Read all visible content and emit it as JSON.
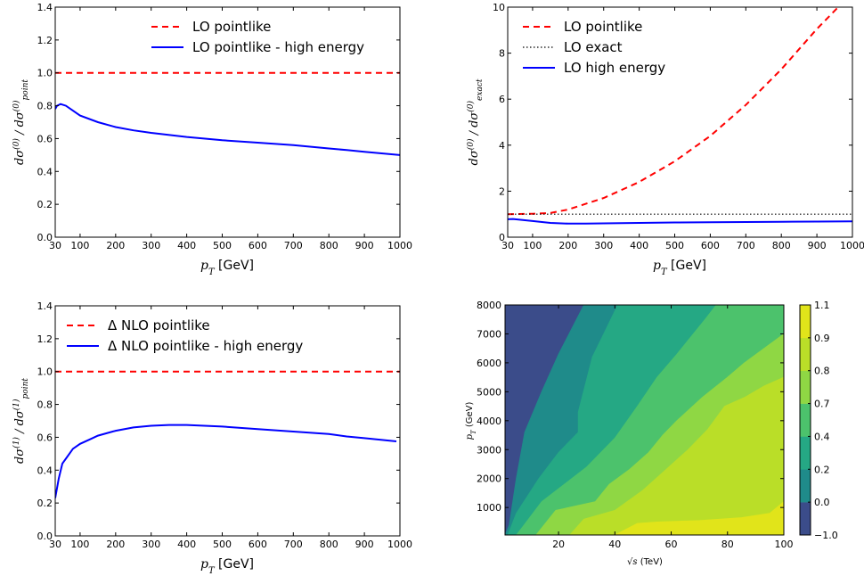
{
  "colors": {
    "red": "#ff0000",
    "blue": "#0000ff",
    "black": "#000000"
  },
  "chart_data": [
    {
      "type": "line",
      "ylabel": "dσ(0) / dσ(0)point",
      "xlabel": "pT [GeV]",
      "xlim": [
        30,
        1000
      ],
      "ylim": [
        0.0,
        1.4
      ],
      "xticks": [
        30,
        100,
        200,
        300,
        400,
        500,
        600,
        700,
        800,
        900,
        1000
      ],
      "yticks": [
        "0.0",
        "0.2",
        "0.4",
        "0.6",
        "0.8",
        "1.0",
        "1.2",
        "1.4"
      ],
      "legend_position": "top-right",
      "series": [
        {
          "name": "LO pointlike",
          "color": "#ff0000",
          "style": "dashed",
          "x": [
            30,
            1000
          ],
          "y": [
            1.0,
            1.0
          ]
        },
        {
          "name": "LO pointlike - high energy",
          "color": "#0000ff",
          "style": "solid",
          "x": [
            30,
            35,
            45,
            60,
            80,
            100,
            150,
            200,
            250,
            300,
            400,
            500,
            600,
            700,
            800,
            850,
            900,
            1000
          ],
          "y": [
            0.78,
            0.8,
            0.81,
            0.8,
            0.77,
            0.74,
            0.7,
            0.67,
            0.65,
            0.635,
            0.61,
            0.59,
            0.575,
            0.56,
            0.54,
            0.53,
            0.52,
            0.5
          ]
        }
      ]
    },
    {
      "type": "line",
      "ylabel": "dσ(0) / dσ(0)exact",
      "xlabel": "pT [GeV]",
      "xlim": [
        30,
        1000
      ],
      "ylim": [
        0,
        10
      ],
      "xticks": [
        30,
        100,
        200,
        300,
        400,
        500,
        600,
        700,
        800,
        900,
        1000
      ],
      "yticks": [
        "0",
        "2",
        "4",
        "6",
        "8",
        "10"
      ],
      "legend_position": "top-left",
      "series": [
        {
          "name": "LO pointlike",
          "color": "#ff0000",
          "style": "dashed",
          "x": [
            30,
            100,
            150,
            200,
            300,
            400,
            500,
            600,
            700,
            800,
            900,
            960
          ],
          "y": [
            1.0,
            1.02,
            1.05,
            1.2,
            1.7,
            2.4,
            3.3,
            4.4,
            5.75,
            7.3,
            9.05,
            10.0
          ]
        },
        {
          "name": "LO exact",
          "color": "#000000",
          "style": "dotted",
          "x": [
            30,
            1000
          ],
          "y": [
            1.0,
            1.0
          ]
        },
        {
          "name": "LO high energy",
          "color": "#0000ff",
          "style": "solid",
          "x": [
            30,
            45,
            100,
            150,
            200,
            250,
            300,
            400,
            500,
            600,
            700,
            800,
            900,
            1000
          ],
          "y": [
            0.78,
            0.79,
            0.7,
            0.62,
            0.59,
            0.59,
            0.6,
            0.62,
            0.64,
            0.65,
            0.66,
            0.67,
            0.68,
            0.69
          ]
        }
      ]
    },
    {
      "type": "line",
      "ylabel": "dσ(1) / dσ(1)point",
      "xlabel": "pT [GeV]",
      "xlim": [
        30,
        1000
      ],
      "ylim": [
        0.0,
        1.4
      ],
      "xticks": [
        30,
        100,
        200,
        300,
        400,
        500,
        600,
        700,
        800,
        900,
        1000
      ],
      "yticks": [
        "0.0",
        "0.2",
        "0.4",
        "0.6",
        "0.8",
        "1.0",
        "1.2",
        "1.4"
      ],
      "legend_position": "top-left",
      "series": [
        {
          "name": "Δ NLO pointlike",
          "color": "#ff0000",
          "style": "dashed",
          "x": [
            30,
            1000
          ],
          "y": [
            1.0,
            1.0
          ]
        },
        {
          "name": "Δ NLO pointlike - high energy",
          "color": "#0000ff",
          "style": "solid",
          "x": [
            30,
            40,
            50,
            60,
            80,
            100,
            130,
            150,
            200,
            250,
            300,
            350,
            400,
            500,
            600,
            700,
            800,
            850,
            900,
            990
          ],
          "y": [
            0.23,
            0.35,
            0.44,
            0.47,
            0.53,
            0.56,
            0.59,
            0.61,
            0.64,
            0.66,
            0.67,
            0.675,
            0.675,
            0.665,
            0.65,
            0.635,
            0.62,
            0.605,
            0.595,
            0.575
          ]
        }
      ]
    },
    {
      "type": "heatmap",
      "xlabel": "√s (TeV)",
      "ylabel": "pT (GeV)",
      "xlim": [
        1,
        100
      ],
      "ylim": [
        50,
        8000
      ],
      "xticks": [
        "20",
        "40",
        "60",
        "80",
        "100"
      ],
      "yticks": [
        "1000",
        "2000",
        "3000",
        "4000",
        "5000",
        "6000",
        "7000",
        "8000"
      ],
      "colorbar_levels": [
        -1.0,
        0.0,
        0.2,
        0.4,
        0.7,
        0.8,
        0.9,
        1.1
      ],
      "colorbar_ticks": [
        "−1.0",
        "0.0",
        "0.2",
        "0.4",
        "0.7",
        "0.8",
        "0.9",
        "1.1"
      ],
      "colorbar_colors": [
        "#3b4c8a",
        "#1f8b8a",
        "#25a884",
        "#4cc26c",
        "#8fd744",
        "#bade28",
        "#e1e41a"
      ],
      "contour_regions": [
        {
          "level_index": 0,
          "color": "#3b4c8a",
          "polygon": [
            [
              1,
              8000
            ],
            [
              1,
              50
            ],
            [
              2.5,
              400
            ],
            [
              5,
              2000
            ],
            [
              8,
              3600
            ],
            [
              14,
              5000
            ],
            [
              20,
              6300
            ],
            [
              29,
              8000
            ]
          ]
        },
        {
          "level_index": 1,
          "color": "#1f8b8a",
          "polygon": [
            [
              1,
              50
            ],
            [
              2.5,
              400
            ],
            [
              5,
              2000
            ],
            [
              8,
              3600
            ],
            [
              14,
              5000
            ],
            [
              20,
              6300
            ],
            [
              29,
              8000
            ],
            [
              41,
              8000
            ],
            [
              36,
              7000
            ],
            [
              32,
              6200
            ],
            [
              27,
              4300
            ],
            [
              27,
              3600
            ],
            [
              20,
              2900
            ],
            [
              13,
              2000
            ],
            [
              5,
              800
            ],
            [
              2,
              50
            ]
          ]
        },
        {
          "level_index": 2,
          "color": "#25a884",
          "polygon": [
            [
              2,
              50
            ],
            [
              5,
              800
            ],
            [
              13,
              2000
            ],
            [
              20,
              2900
            ],
            [
              27,
              3600
            ],
            [
              27,
              4300
            ],
            [
              32,
              6200
            ],
            [
              36,
              7000
            ],
            [
              41,
              8000
            ],
            [
              76,
              8000
            ],
            [
              72,
              7500
            ],
            [
              62,
              6300
            ],
            [
              55,
              5500
            ],
            [
              48,
              4500
            ],
            [
              40,
              3400
            ],
            [
              30,
              2400
            ],
            [
              22,
              1800
            ],
            [
              14,
              1200
            ],
            [
              7,
              300
            ],
            [
              5,
              50
            ]
          ]
        },
        {
          "level_index": 3,
          "color": "#4cc26c",
          "polygon": [
            [
              5,
              50
            ],
            [
              7,
              300
            ],
            [
              14,
              1200
            ],
            [
              22,
              1800
            ],
            [
              30,
              2400
            ],
            [
              40,
              3400
            ],
            [
              48,
              4500
            ],
            [
              55,
              5500
            ],
            [
              62,
              6300
            ],
            [
              72,
              7500
            ],
            [
              76,
              8000
            ],
            [
              100,
              8000
            ],
            [
              100,
              7000
            ],
            [
              86,
              6000
            ],
            [
              80,
              5500
            ],
            [
              71,
              4800
            ],
            [
              62,
              4000
            ],
            [
              57,
              3500
            ],
            [
              52,
              2900
            ],
            [
              45,
              2300
            ],
            [
              38,
              1800
            ],
            [
              33,
              1200
            ],
            [
              19,
              900
            ],
            [
              12,
              50
            ]
          ]
        },
        {
          "level_index": 4,
          "color": "#8fd744",
          "polygon": [
            [
              12,
              50
            ],
            [
              19,
              900
            ],
            [
              33,
              1200
            ],
            [
              38,
              1800
            ],
            [
              45,
              2300
            ],
            [
              52,
              2900
            ],
            [
              57,
              3500
            ],
            [
              62,
              4000
            ],
            [
              71,
              4800
            ],
            [
              80,
              5500
            ],
            [
              86,
              6000
            ],
            [
              100,
              7000
            ],
            [
              100,
              5500
            ],
            [
              93,
              5200
            ],
            [
              86,
              4800
            ],
            [
              79,
              4500
            ],
            [
              73,
              3700
            ],
            [
              66,
              3000
            ],
            [
              58,
              2300
            ],
            [
              50,
              1600
            ],
            [
              40,
              900
            ],
            [
              29,
              600
            ],
            [
              24,
              50
            ]
          ]
        },
        {
          "level_index": 5,
          "color": "#bade28",
          "polygon": [
            [
              24,
              50
            ],
            [
              29,
              600
            ],
            [
              40,
              900
            ],
            [
              50,
              1600
            ],
            [
              58,
              2300
            ],
            [
              66,
              3000
            ],
            [
              73,
              3700
            ],
            [
              79,
              4500
            ],
            [
              86,
              4800
            ],
            [
              93,
              5200
            ],
            [
              100,
              5500
            ],
            [
              100,
              1200
            ],
            [
              95,
              800
            ],
            [
              85,
              650
            ],
            [
              70,
              550
            ],
            [
              55,
              500
            ],
            [
              48,
              450
            ],
            [
              40,
              50
            ]
          ]
        },
        {
          "level_index": 6,
          "color": "#e1e41a",
          "polygon": [
            [
              40,
              50
            ],
            [
              48,
              450
            ],
            [
              55,
              500
            ],
            [
              70,
              550
            ],
            [
              85,
              650
            ],
            [
              95,
              800
            ],
            [
              100,
              1200
            ],
            [
              100,
              50
            ]
          ]
        }
      ]
    }
  ]
}
